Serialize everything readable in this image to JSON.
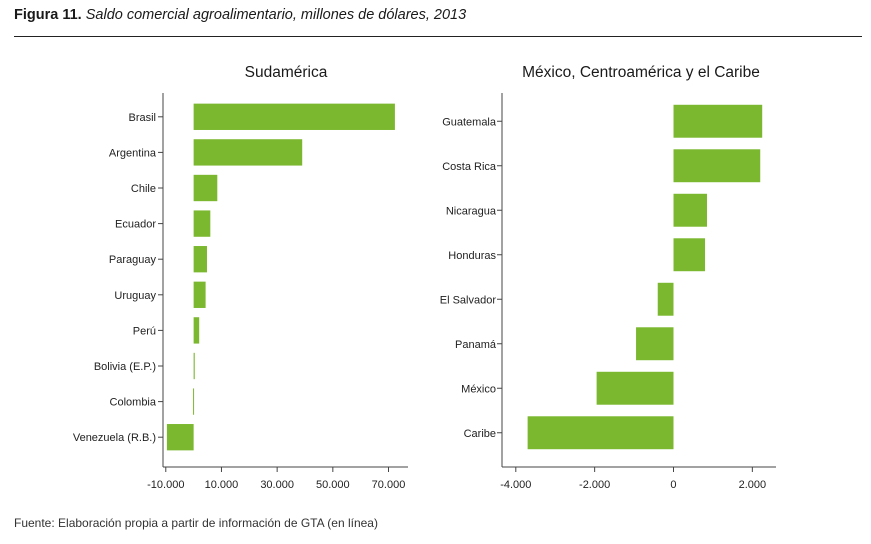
{
  "figure": {
    "label": "Figura 11.",
    "title": "Saldo comercial agroalimentario, millones de dólares, 2013",
    "source": "Fuente: Elaboración propia a partir de información de GTA (en línea)"
  },
  "chart_data": [
    {
      "type": "bar",
      "orientation": "horizontal",
      "title": "Sudamérica",
      "categories": [
        "Brasil",
        "Argentina",
        "Chile",
        "Ecuador",
        "Paraguay",
        "Uruguay",
        "Perú",
        "Bolivia (E.P.)",
        "Colombia",
        "Venezuela (R.B.)"
      ],
      "values": [
        72300,
        39000,
        8500,
        6000,
        4800,
        4300,
        2000,
        400,
        -200,
        -9600
      ],
      "ticks": [
        -10000,
        10000,
        30000,
        50000,
        70000
      ],
      "tick_labels": [
        "-10.000",
        "10.000",
        "30.000",
        "50.000",
        "70.000"
      ],
      "xlim": [
        -11000,
        77000
      ],
      "color": "#7cb82f",
      "grid": false
    },
    {
      "type": "bar",
      "orientation": "horizontal",
      "title": "México, Centroamérica y el Caribe",
      "categories": [
        "Guatemala",
        "Costa Rica",
        "Nicaragua",
        "Honduras",
        "El Salvador",
        "Panamá",
        "México",
        "Caribe"
      ],
      "values": [
        2250,
        2200,
        850,
        800,
        -400,
        -950,
        -1950,
        -3700
      ],
      "ticks": [
        -4000,
        -2000,
        0,
        2000
      ],
      "tick_labels": [
        "-4.000",
        "-2.000",
        "0",
        "2.000"
      ],
      "xlim": [
        -4350,
        2600
      ],
      "color": "#7cb82f",
      "grid": false
    }
  ]
}
